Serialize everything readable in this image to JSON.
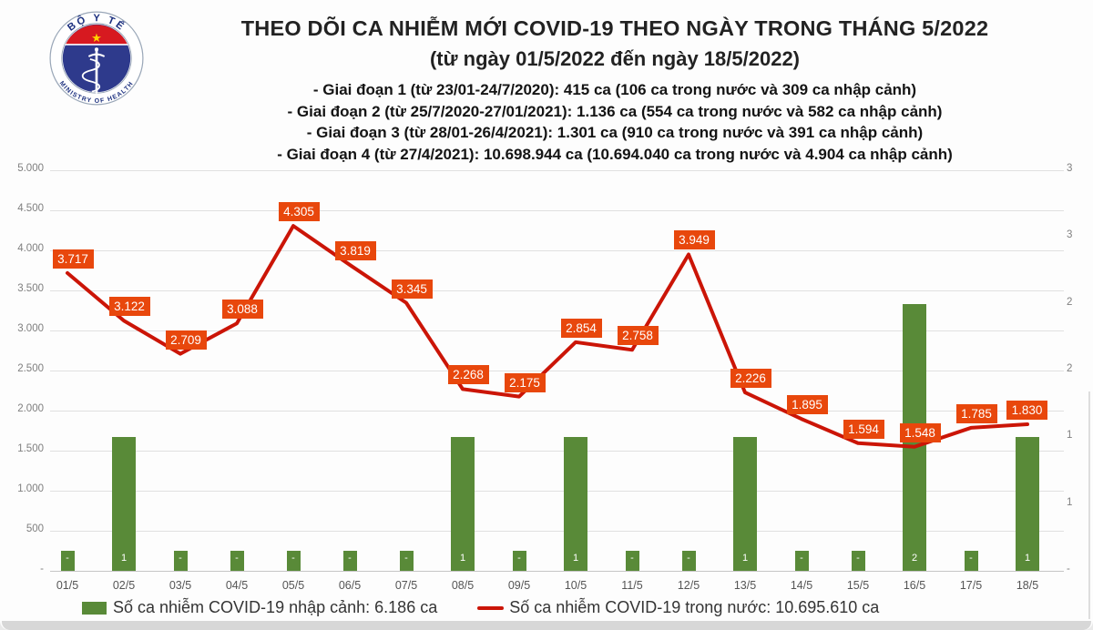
{
  "logo": {
    "top_text": "BỘ Y TẾ",
    "bottom_text": "MINISTRY OF HEALTH"
  },
  "header": {
    "title": "THEO DÕI CA NHIỄM MỚI COVID-19 THEO NGÀY TRONG THÁNG 5/2022",
    "subtitle": "(từ ngày 01/5/2022 đến ngày 18/5/2022)",
    "phases": [
      "- Giai đoạn 1 (từ 23/01-24/7/2020): 415 ca (106 ca trong nước và 309 ca nhập cảnh)",
      "- Giai đoạn 2 (từ 25/7/2020-27/01/2021): 1.136 ca (554 ca trong nước và 582 ca nhập cảnh)",
      "- Giai đoạn 3 (từ 28/01-26/4/2021): 1.301 ca (910 ca trong nước và 391 ca nhập cảnh)",
      "- Giai đoạn 4 (từ 27/4/2021): 10.698.944 ca (10.694.040 ca trong nước và 4.904 ca nhập cảnh)"
    ]
  },
  "legend": {
    "bar_label": "Số ca nhiễm COVID-19 nhập cảnh: 6.186 ca",
    "line_label": "Số ca nhiễm COVID-19 trong nước: 10.695.610 ca"
  },
  "colors": {
    "bar_green": "#598a38",
    "line_red": "#cb1507",
    "label_box_orange": "#e8470c",
    "logo_navy": "#2e3a8c",
    "logo_text_navy": "#1b2f7e",
    "flag_red": "#d71920",
    "star_yellow": "#ffd400"
  },
  "chart_data": {
    "type": "bar+line",
    "title": "THEO DÕI CA NHIỄM MỚI COVID-19 THEO NGÀY TRONG THÁNG 5/2022",
    "categories": [
      "01/5",
      "02/5",
      "03/5",
      "04/5",
      "05/5",
      "06/5",
      "07/5",
      "08/5",
      "09/5",
      "10/5",
      "11/5",
      "12/5",
      "13/5",
      "14/5",
      "15/5",
      "16/5",
      "17/5",
      "18/5"
    ],
    "series": [
      {
        "name": "Số ca nhiễm COVID-19 nhập cảnh",
        "type": "bar",
        "axis": "right",
        "values": [
          0,
          1,
          0,
          0,
          0,
          0,
          0,
          1,
          0,
          1,
          0,
          0,
          1,
          0,
          0,
          2,
          0,
          1
        ],
        "data_labels": [
          "-",
          "1",
          "-",
          "-",
          "-",
          "-",
          "-",
          "1",
          "-",
          "1",
          "-",
          "-",
          "1",
          "-",
          "-",
          "2",
          "-",
          "1"
        ]
      },
      {
        "name": "Số ca nhiễm COVID-19 trong nước",
        "type": "line",
        "axis": "left",
        "values": [
          3717,
          3122,
          2709,
          3088,
          4305,
          3819,
          3345,
          2268,
          2175,
          2854,
          2758,
          3949,
          2226,
          1895,
          1594,
          1548,
          1785,
          1830
        ],
        "data_labels": [
          "3.717",
          "3.122",
          "2.709",
          "3.088",
          "4.305",
          "3.819",
          "3.345",
          "2.268",
          "2.175",
          "2.854",
          "2.758",
          "3.949",
          "2.226",
          "1.895",
          "1.594",
          "1.548",
          "1.785",
          "1.830"
        ]
      }
    ],
    "left_axis": {
      "min": 0,
      "max": 5000,
      "step": 500,
      "tick_labels": [
        "5.000",
        "4.500",
        "4.000",
        "3.500",
        "3.000",
        "2.500",
        "2.000",
        "1.500",
        "1.000",
        "500",
        "-"
      ]
    },
    "right_axis": {
      "min": 0,
      "max": 3,
      "tick_values": [
        3,
        2.5,
        2,
        1.5,
        1,
        0.5,
        0
      ],
      "tick_labels": [
        "3",
        "3",
        "2",
        "2",
        "1",
        "1",
        "-"
      ]
    },
    "grid": true,
    "legend_position": "bottom"
  }
}
